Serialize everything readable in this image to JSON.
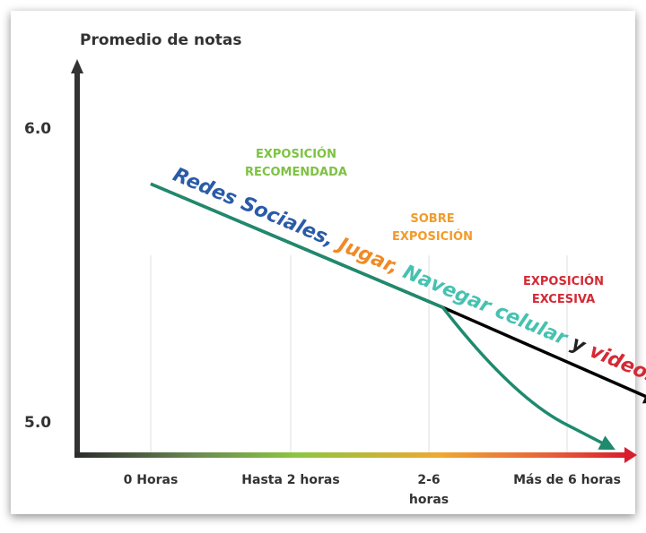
{
  "chart_data": {
    "type": "line",
    "ylabel": "Promedio de notas",
    "xlabel": "",
    "yticks": [
      "6.0",
      "5.0"
    ],
    "ylim": [
      4.86,
      6.25
    ],
    "categories": [
      "0 Horas",
      "Hasta 2 horas",
      "2-6 horas",
      "Más de 6 horas"
    ],
    "category_labels": [
      [
        "0 Horas"
      ],
      [
        "Hasta 2 horas"
      ],
      [
        "2-6",
        "horas"
      ],
      [
        "Más de 6 horas"
      ]
    ],
    "series": [
      {
        "name": "",
        "x": [
          0.0,
          2.1,
          3.65
        ],
        "values": [
          5.81,
          5.39,
          5.07
        ],
        "color": "#000000"
      },
      {
        "name": "",
        "x": [
          0.0,
          2.1,
          3.0,
          3.33
        ],
        "values": [
          5.81,
          5.39,
          4.99,
          4.91
        ],
        "color": "#1e8a6e"
      }
    ],
    "zones": [
      {
        "lines": [
          "EXPOSICIÓN",
          "RECOMENDADA"
        ],
        "color": "#7dc242"
      },
      {
        "lines": [
          "SOBRE",
          "EXPOSICIÓN"
        ],
        "color": "#f29b2a"
      },
      {
        "lines": [
          "EXPOSICIÓN",
          "EXCESIVA"
        ],
        "color": "#d42a35"
      }
    ],
    "annotation": [
      {
        "text": "Redes Sociales",
        "color": "#2a5ba8"
      },
      {
        "text": ", ",
        "color": "#2a5ba8"
      },
      {
        "text": "Jugar",
        "color": "#f08a24"
      },
      {
        "text": ", ",
        "color": "#f08a24"
      },
      {
        "text": "Navegar celular",
        "color": "#45c2b0"
      },
      {
        "text": " y ",
        "color": "#222222"
      },
      {
        "text": "videos",
        "color": "#d42a35"
      }
    ]
  }
}
